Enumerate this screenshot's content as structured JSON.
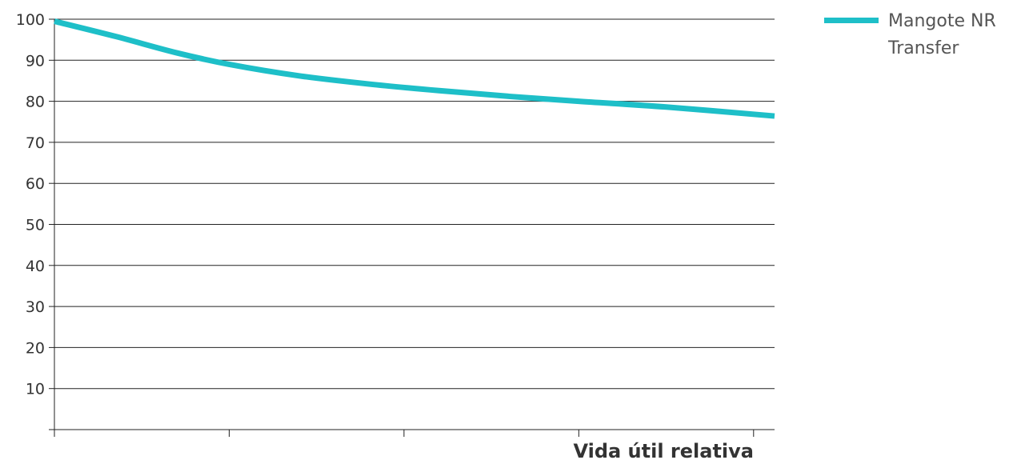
{
  "chart_data": {
    "type": "line",
    "title": "",
    "xlabel": "Vida útil relativa",
    "ylabel": "",
    "ylim": [
      0,
      100
    ],
    "yticks": [
      10,
      20,
      30,
      40,
      50,
      60,
      70,
      80,
      90,
      100
    ],
    "xlim": [
      0,
      4.12
    ],
    "xticks": [
      0,
      1,
      2,
      3,
      4
    ],
    "grid": true,
    "legend_position": "top-right",
    "series": [
      {
        "name": "Mangote NR Transfer",
        "color": "#1ebfc8",
        "x": [
          0,
          0.35,
          0.7,
          1.0,
          1.4,
          1.8,
          2.2,
          2.6,
          3.0,
          3.5,
          4.12
        ],
        "y": [
          99.5,
          95.8,
          91.8,
          89.0,
          86.2,
          84.2,
          82.6,
          81.2,
          80.0,
          78.6,
          76.4
        ]
      }
    ]
  }
}
